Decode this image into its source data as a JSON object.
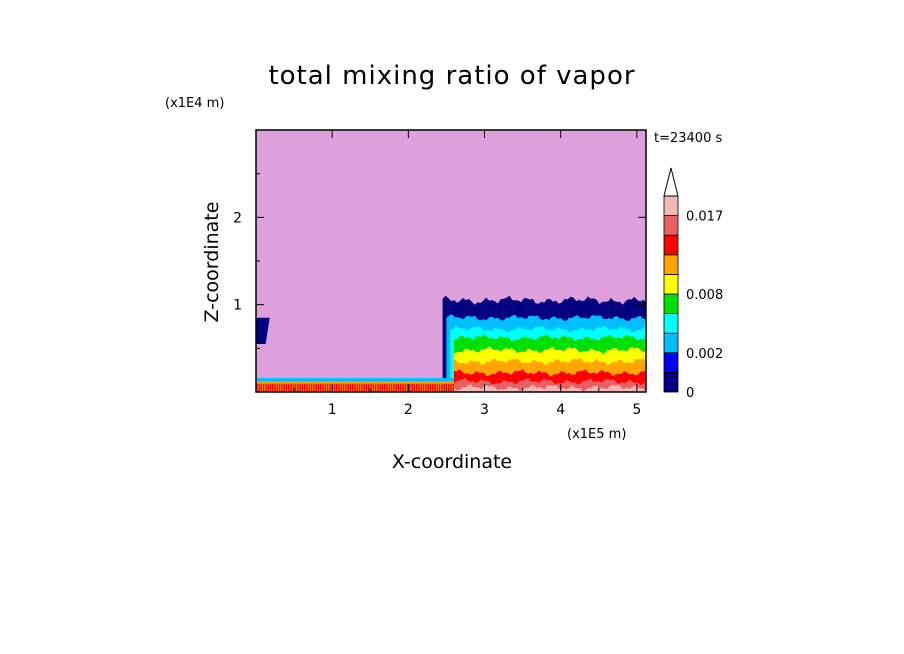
{
  "chart_data": {
    "type": "heatmap",
    "title": "total mixing ratio of vapor",
    "xlabel": "X-coordinate",
    "ylabel": "Z-coordinate",
    "x_unit": "(x1E5 m)",
    "y_unit": "(x1E4 m)",
    "time_label": "t=23400 s",
    "xlim": [
      0,
      5.12
    ],
    "ylim": [
      0,
      3.0
    ],
    "x_ticks": [
      "1",
      "2",
      "3",
      "4",
      "5"
    ],
    "y_ticks": [
      "1",
      "2"
    ],
    "colorbar": {
      "levels": [
        0,
        0.001,
        0.002,
        0.004,
        0.006,
        0.008,
        0.01,
        0.012,
        0.014,
        0.017,
        0.02
      ],
      "tick_labels": [
        "0",
        "0.002",
        "0.008",
        "0.017"
      ],
      "colors": [
        "#000080",
        "#0000ff",
        "#00bfff",
        "#00ffff",
        "#00e000",
        "#ffff00",
        "#ffa500",
        "#ff0000",
        "#e86060",
        "#f4b6b6"
      ],
      "extend": "max"
    },
    "background_color": "#dda0dd",
    "regions": [
      {
        "name": "moist-layer",
        "x_start": 2.6,
        "x_end": 5.12,
        "top_z": 1.05,
        "level_tops_z": [
          0.05,
          0.12,
          0.22,
          0.35,
          0.48,
          0.62,
          0.72,
          0.85,
          1.05
        ]
      },
      {
        "name": "surface-layer",
        "x_start": 0.0,
        "x_end": 2.6,
        "top_z": 0.16
      },
      {
        "name": "left-edge-patch",
        "x_start": 0.0,
        "x_end": 0.18,
        "z_bottom": 0.55,
        "z_top": 0.85
      }
    ]
  }
}
